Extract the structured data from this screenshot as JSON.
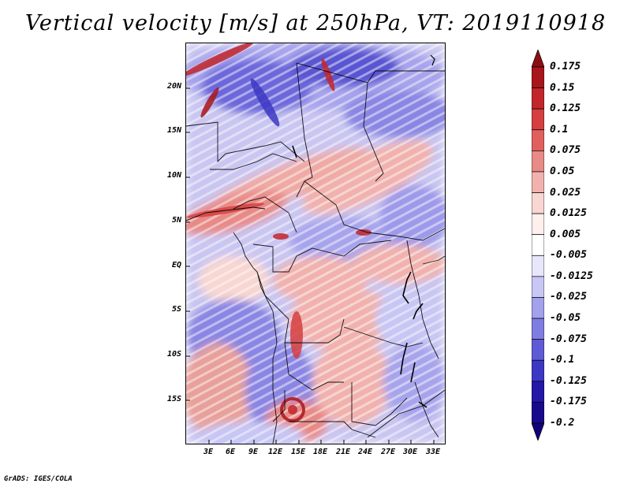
{
  "title": "Vertical velocity [m/s] at 250hPa, VT: 2019110918",
  "footer": "GrADS: IGES/COLA",
  "map": {
    "y_labels": [
      "20N",
      "15N",
      "10N",
      "5N",
      "EQ",
      "5S",
      "10S",
      "15S"
    ],
    "x_labels": [
      "3E",
      "6E",
      "9E",
      "12E",
      "15E",
      "18E",
      "21E",
      "24E",
      "27E",
      "30E",
      "33E"
    ]
  },
  "colorbar": {
    "labels": [
      "0.175",
      "0.15",
      "0.125",
      "0.1",
      "0.075",
      "0.05",
      "0.025",
      "0.0125",
      "0.005",
      "-0.005",
      "-0.0125",
      "-0.025",
      "-0.05",
      "-0.075",
      "-0.1",
      "-0.125",
      "-0.175",
      "-0.2"
    ],
    "colors": [
      "#8b0f12",
      "#a8161b",
      "#c2262b",
      "#d53f3f",
      "#e0605e",
      "#e88a86",
      "#f1b2ad",
      "#f8d6d2",
      "#fff0ee",
      "#ffffff",
      "#e7e6fb",
      "#c7c6f4",
      "#a3a1ec",
      "#807de2",
      "#5f5bd6",
      "#3d38c3",
      "#2317a8",
      "#170a8c",
      "#120078"
    ]
  }
}
